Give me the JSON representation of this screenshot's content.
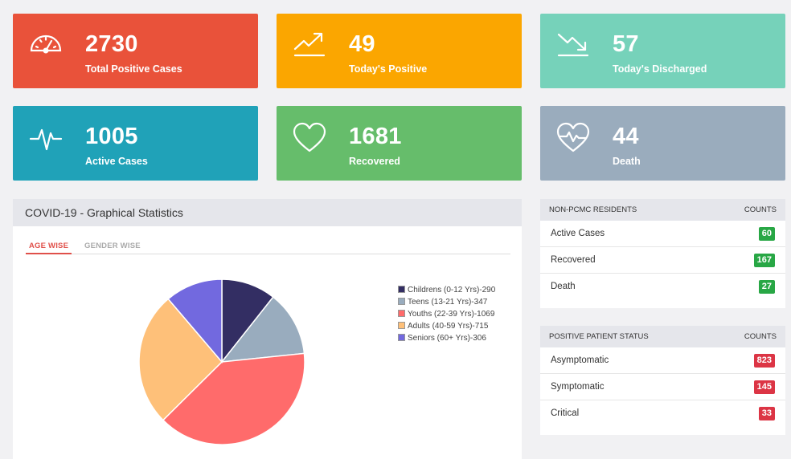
{
  "cards": [
    {
      "value": "2730",
      "label": "Total Positive Cases",
      "color": "#e9523a",
      "icon": "speedometer-icon"
    },
    {
      "value": "49",
      "label": "Today's Positive",
      "color": "#fba600",
      "icon": "trend-up-icon"
    },
    {
      "value": "57",
      "label": "Today's Discharged",
      "color": "#76d2ba",
      "icon": "trend-down-icon"
    },
    {
      "value": "1005",
      "label": "Active Cases",
      "color": "#20a2b8",
      "icon": "pulse-icon"
    },
    {
      "value": "1681",
      "label": "Recovered",
      "color": "#66bd6b",
      "icon": "heart-icon"
    },
    {
      "value": "44",
      "label": "Death",
      "color": "#9aacbd",
      "icon": "broken-heart-icon"
    }
  ],
  "graph_panel": {
    "title": "COVID-19 - Graphical Statistics",
    "tabs": [
      "AGE WISE",
      "GENDER WISE"
    ],
    "active_tab": "AGE WISE"
  },
  "chart_data": {
    "type": "pie",
    "categories": [
      "Childrens (0-12 Yrs)-290",
      "Teens (13-21 Yrs)-347",
      "Youths (22-39 Yrs)-1069",
      "Adults (40-59 Yrs)-715",
      "Seniors (60+ Yrs)-306"
    ],
    "values": [
      290,
      347,
      1069,
      715,
      306
    ],
    "colors": [
      "#332e63",
      "#99acbe",
      "#ff6b6b",
      "#fec079",
      "#7269df"
    ],
    "legend": "right"
  },
  "non_pcmc": {
    "header_left": "NON-PCMC RESIDENTS",
    "header_right": "COUNTS",
    "rows": [
      {
        "label": "Active Cases",
        "count": "60"
      },
      {
        "label": "Recovered",
        "count": "167"
      },
      {
        "label": "Death",
        "count": "27"
      }
    ],
    "badge_color": "#28a745"
  },
  "patient_status": {
    "header_left": "POSITIVE PATIENT STATUS",
    "header_right": "COUNTS",
    "rows": [
      {
        "label": "Asymptomatic",
        "count": "823"
      },
      {
        "label": "Symptomatic",
        "count": "145"
      },
      {
        "label": "Critical",
        "count": "33"
      }
    ],
    "badge_color": "#dc3545"
  }
}
